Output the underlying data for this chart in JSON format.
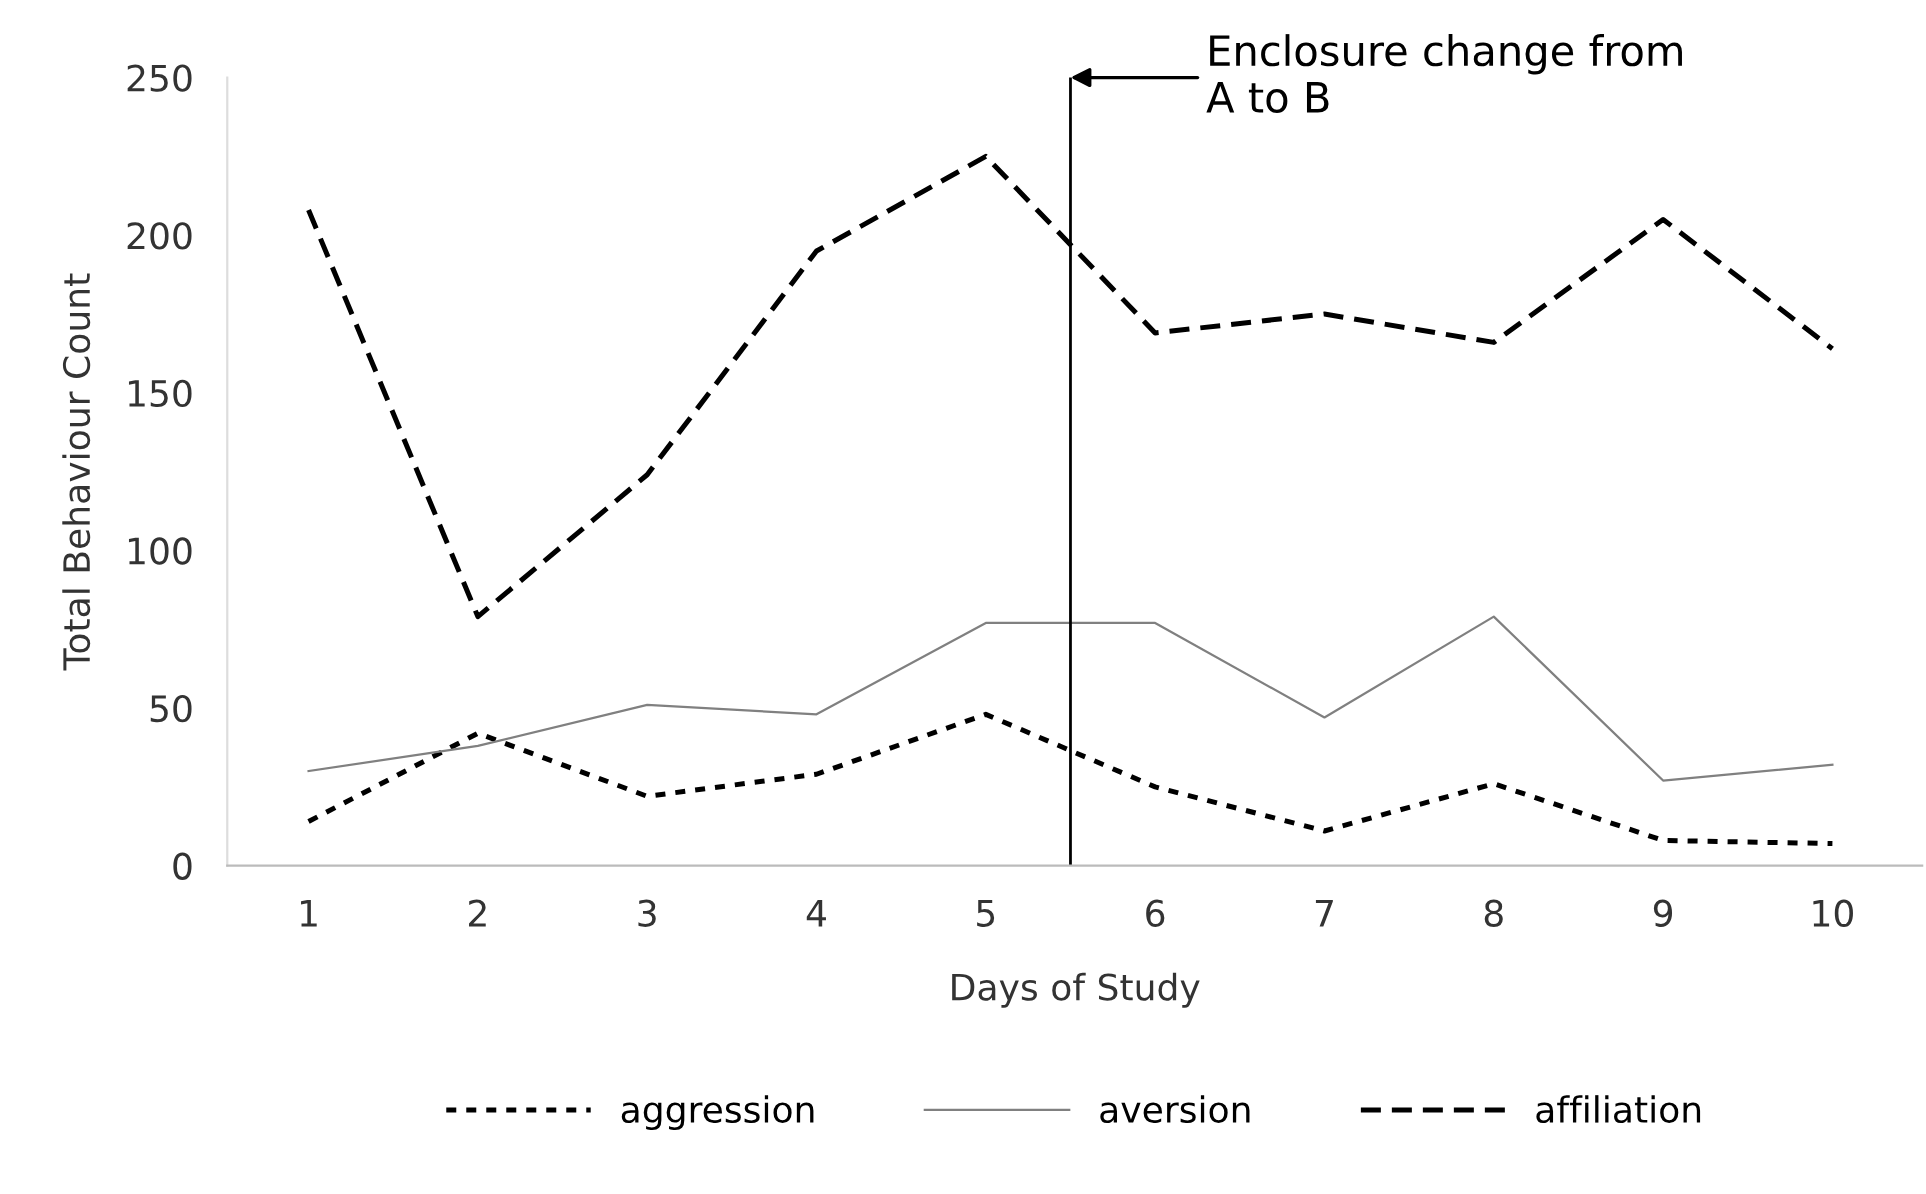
{
  "chart_data": {
    "type": "line",
    "xlabel": "Days of Study",
    "ylabel": "Total Behaviour Count",
    "x": [
      1,
      2,
      3,
      4,
      5,
      6,
      7,
      8,
      9,
      10
    ],
    "xlim": [
      0.52,
      10.53
    ],
    "xticks": [
      1,
      2,
      3,
      4,
      5,
      6,
      7,
      8,
      9,
      10
    ],
    "ylim": [
      0,
      250
    ],
    "yticks": [
      0,
      50,
      100,
      150,
      200,
      250
    ],
    "series": [
      {
        "name": "aggression",
        "color": "#000000",
        "line_style": "dotted",
        "values": [
          14,
          42,
          22,
          29,
          48,
          25,
          11,
          26,
          8,
          7
        ]
      },
      {
        "name": "aversion",
        "color": "#808080",
        "line_style": "solid",
        "values": [
          30,
          38,
          51,
          48,
          77,
          77,
          47,
          79,
          27,
          32
        ]
      },
      {
        "name": "affiliation",
        "color": "#000000",
        "line_style": "dashed",
        "values": [
          208,
          79,
          124,
          195,
          225,
          169,
          175,
          166,
          205,
          164
        ]
      }
    ],
    "ref_lines": [
      {
        "axis": "x",
        "value": 5.5,
        "color": "#000000"
      }
    ],
    "annotations": [
      "Enclosure change from\nA to B"
    ],
    "grid": false,
    "legend": "bottom",
    "marker": "none"
  }
}
